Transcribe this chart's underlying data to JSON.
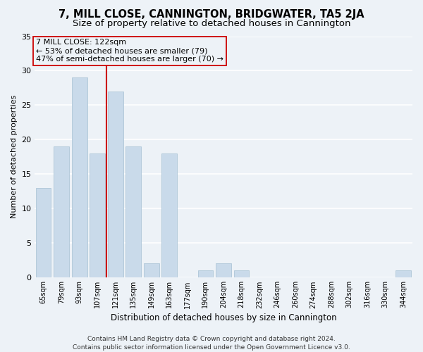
{
  "title": "7, MILL CLOSE, CANNINGTON, BRIDGWATER, TA5 2JA",
  "subtitle": "Size of property relative to detached houses in Cannington",
  "xlabel": "Distribution of detached houses by size in Cannington",
  "ylabel": "Number of detached properties",
  "categories": [
    "65sqm",
    "79sqm",
    "93sqm",
    "107sqm",
    "121sqm",
    "135sqm",
    "149sqm",
    "163sqm",
    "177sqm",
    "190sqm",
    "204sqm",
    "218sqm",
    "232sqm",
    "246sqm",
    "260sqm",
    "274sqm",
    "288sqm",
    "302sqm",
    "316sqm",
    "330sqm",
    "344sqm"
  ],
  "values": [
    13,
    19,
    29,
    18,
    27,
    19,
    2,
    18,
    0,
    1,
    2,
    1,
    0,
    0,
    0,
    0,
    0,
    0,
    0,
    0,
    1
  ],
  "bar_color": "#c9daea",
  "bar_edgecolor": "#aec6d8",
  "vline_x": 3.5,
  "vline_color": "#cc0000",
  "annotation_text": "7 MILL CLOSE: 122sqm\n← 53% of detached houses are smaller (79)\n47% of semi-detached houses are larger (70) →",
  "annotation_box_edgecolor": "#cc0000",
  "ylim": [
    0,
    35
  ],
  "yticks": [
    0,
    5,
    10,
    15,
    20,
    25,
    30,
    35
  ],
  "footer": "Contains HM Land Registry data © Crown copyright and database right 2024.\nContains public sector information licensed under the Open Government Licence v3.0.",
  "bg_color": "#edf2f7",
  "grid_color": "#ffffff",
  "title_fontsize": 10.5,
  "subtitle_fontsize": 9.5,
  "annotation_fontsize": 8,
  "footer_fontsize": 6.5,
  "ylabel_fontsize": 8,
  "xlabel_fontsize": 8.5
}
